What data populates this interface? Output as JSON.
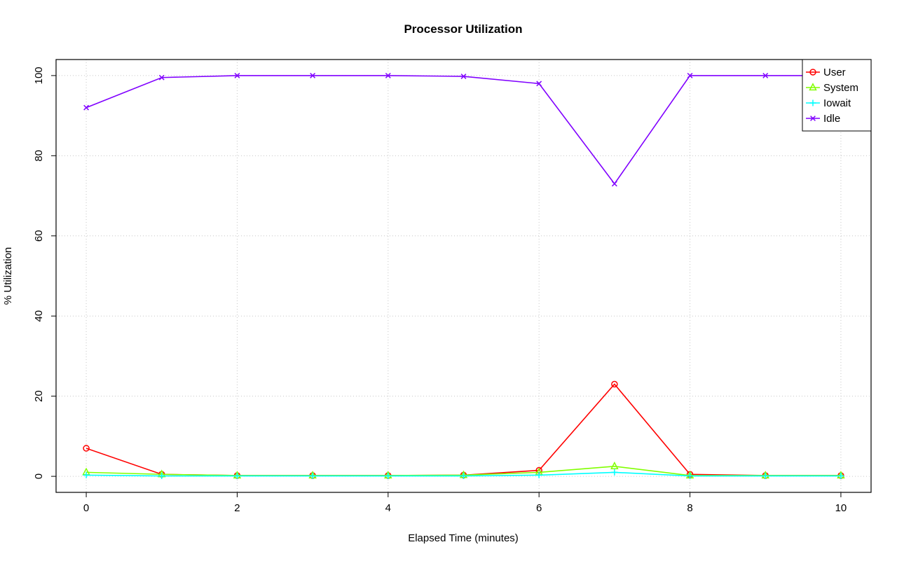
{
  "chart_data": {
    "type": "line",
    "title": "Processor Utilization",
    "xlabel": "Elapsed Time (minutes)",
    "ylabel": "% Utilization",
    "xlim": [
      0,
      10
    ],
    "ylim": [
      0,
      100
    ],
    "xticks": [
      0,
      2,
      4,
      6,
      8,
      10
    ],
    "yticks": [
      0,
      20,
      40,
      60,
      80,
      100
    ],
    "grid": true,
    "legend_position": "top-right",
    "x": [
      0,
      1,
      2,
      3,
      4,
      5,
      6,
      7,
      8,
      9,
      10
    ],
    "series": [
      {
        "name": "User",
        "color": "#ff0000",
        "marker": "circle",
        "values": [
          7,
          0.5,
          0.2,
          0.2,
          0.2,
          0.3,
          1.5,
          23,
          0.5,
          0.2,
          0.2
        ]
      },
      {
        "name": "System",
        "color": "#80ff00",
        "marker": "triangle",
        "values": [
          1,
          0.5,
          0.2,
          0.2,
          0.2,
          0.3,
          1,
          2.5,
          0.2,
          0.2,
          0.2
        ]
      },
      {
        "name": "Iowait",
        "color": "#00ffff",
        "marker": "plus",
        "values": [
          0.3,
          0.1,
          0.1,
          0.1,
          0.1,
          0.1,
          0.3,
          1,
          0.1,
          0.1,
          0.1
        ]
      },
      {
        "name": "Idle",
        "color": "#8000ff",
        "marker": "x",
        "values": [
          92,
          99.5,
          100,
          100,
          100,
          99.8,
          98,
          73,
          100,
          100,
          100
        ]
      }
    ]
  }
}
